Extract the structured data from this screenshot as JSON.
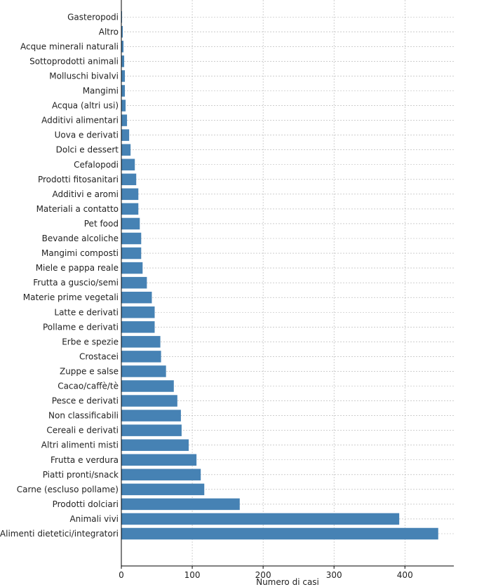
{
  "chart_data": {
    "type": "bar",
    "orientation": "horizontal",
    "categories": [
      "Alimenti dietetici/integratori",
      "Animali vivi",
      "Prodotti dolciari",
      "Carne (escluso pollame)",
      "Piatti pronti/snack",
      "Frutta e verdura",
      "Altri alimenti misti",
      "Cereali e derivati",
      "Non classificabili",
      "Pesce e derivati",
      "Cacao/caffè/tè",
      "Zuppe e salse",
      "Crostacei",
      "Erbe e spezie",
      "Pollame e derivati",
      "Latte e derivati",
      "Materie prime vegetali",
      "Frutta a guscio/semi",
      "Miele e pappa reale",
      "Mangimi composti",
      "Bevande alcoliche",
      "Pet food",
      "Materiali a contatto",
      "Additivi e aromi",
      "Prodotti fitosanitari",
      "Cefalopodi",
      "Dolci e dessert",
      "Uova e derivati",
      "Additivi alimentari",
      "Acqua (altri usi)",
      "Mangimi",
      "Molluschi bivalvi",
      "Sottoprodotti animali",
      "Acque minerali naturali",
      "Altro",
      "Gasteropodi"
    ],
    "values": [
      447,
      392,
      167,
      117,
      112,
      106,
      95,
      85,
      84,
      79,
      74,
      63,
      56,
      55,
      47,
      47,
      43,
      36,
      30,
      28,
      28,
      26,
      24,
      24,
      21,
      19,
      13,
      11,
      8,
      6,
      5,
      5,
      4,
      3,
      2,
      1
    ],
    "xlabel": "Numero di casi",
    "ylabel": "",
    "title": "",
    "xlim": [
      0,
      469
    ],
    "xticks": [
      0,
      100,
      200,
      300,
      400
    ],
    "grid": true,
    "bar_color": "#4682b4"
  }
}
